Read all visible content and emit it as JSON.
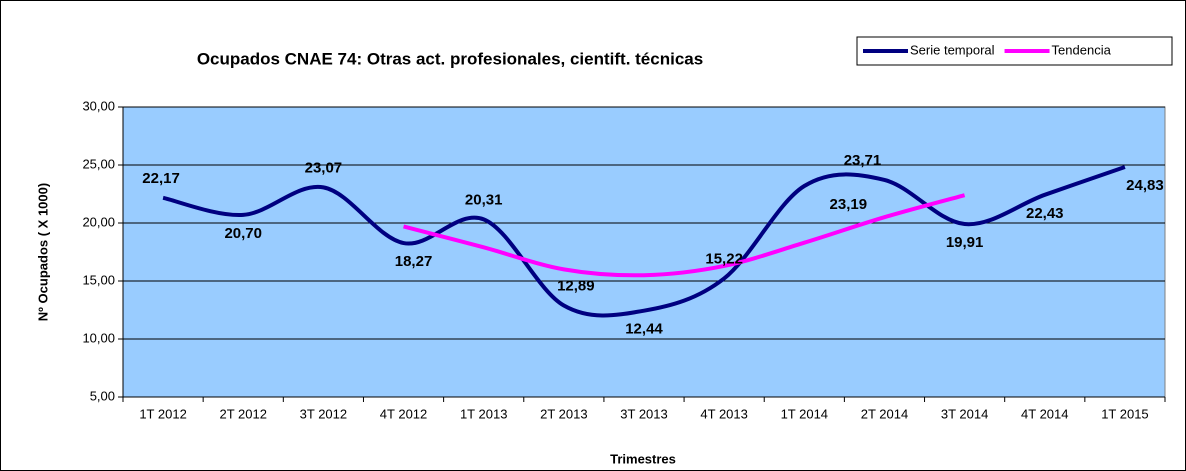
{
  "chart_data": {
    "type": "line",
    "title": "Ocupados CNAE 74: Otras act. profesionales, cientift. técnicas",
    "x_label": "Trimestres",
    "y_label": "Nº Ocupados ( X 1000)",
    "categories": [
      "1T 2012",
      "2T 2012",
      "3T 2012",
      "4T 2012",
      "1T 2013",
      "2T 2013",
      "3T 2013",
      "4T 2013",
      "1T 2014",
      "2T 2014",
      "3T 2014",
      "4T 2014",
      "1T 2015"
    ],
    "series": [
      {
        "name": "Serie temporal",
        "color": "#000080",
        "values": [
          22.17,
          20.7,
          23.07,
          18.27,
          20.31,
          12.89,
          12.44,
          15.22,
          23.19,
          23.71,
          19.91,
          22.43,
          24.83
        ],
        "value_labels": [
          "22,17",
          "20,70",
          "23,07",
          "18,27",
          "20,31",
          "12,89",
          "12,44",
          "15,22",
          "23,19",
          "23,71",
          "19,91",
          "22,43",
          "24,83"
        ]
      },
      {
        "name": "Tendencia",
        "color": "#ff00ff",
        "values": [
          null,
          null,
          null,
          19.7,
          17.9,
          16.0,
          15.5,
          16.3,
          18.3,
          20.5,
          22.4,
          null,
          null
        ]
      }
    ],
    "ylim": [
      5,
      30
    ],
    "yticks": [
      {
        "value": 5,
        "label": "5,00"
      },
      {
        "value": 10,
        "label": "10,00"
      },
      {
        "value": 15,
        "label": "15,00"
      },
      {
        "value": 20,
        "label": "20,00"
      },
      {
        "value": 25,
        "label": "25,00"
      },
      {
        "value": 30,
        "label": "30,00"
      }
    ],
    "grid": true,
    "legend": "top-right",
    "plot_background": "#99ccff"
  }
}
